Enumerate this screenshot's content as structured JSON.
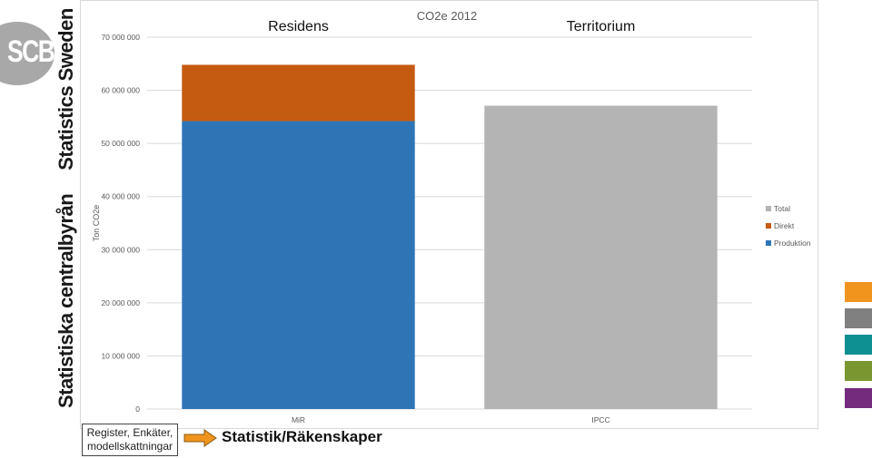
{
  "brand": {
    "logo_text": "SCB",
    "name_sv": "Statistiska centralbyrån",
    "name_en": "Statistics Sweden"
  },
  "colors": {
    "produktion": "#2e75b6",
    "direkt": "#c55a11",
    "total": "#b4b4b4",
    "swatches": [
      "#f0941e",
      "#808080",
      "#0e8f92",
      "#7a9630",
      "#742b7e"
    ]
  },
  "chart_data": {
    "type": "bar",
    "stacked": true,
    "title": "CO2e 2012",
    "ylabel": "Ton CO2e",
    "xlabel": "",
    "categories": [
      "MiR",
      "IPCC"
    ],
    "category_headers": [
      "Residens",
      "Territorium"
    ],
    "ylim": [
      0,
      70000000
    ],
    "yticks": [
      0,
      10000000,
      20000000,
      30000000,
      40000000,
      50000000,
      60000000,
      70000000
    ],
    "ytick_labels": [
      "0",
      "10 000 000",
      "20 000 000",
      "30 000 000",
      "40 000 000",
      "50 000 000",
      "60 000 000",
      "70 000 000"
    ],
    "grid": true,
    "legend_position": "right",
    "series": [
      {
        "name": "Produktion",
        "values": [
          54200000,
          0
        ]
      },
      {
        "name": "Direkt",
        "values": [
          10600000,
          0
        ]
      },
      {
        "name": "Total",
        "values": [
          0,
          57100000
        ]
      }
    ]
  },
  "footer": {
    "source_line1": "Register, Enkäter,",
    "source_line2": "modellskattningar",
    "output_label": "Statistik/Räkenskaper"
  }
}
